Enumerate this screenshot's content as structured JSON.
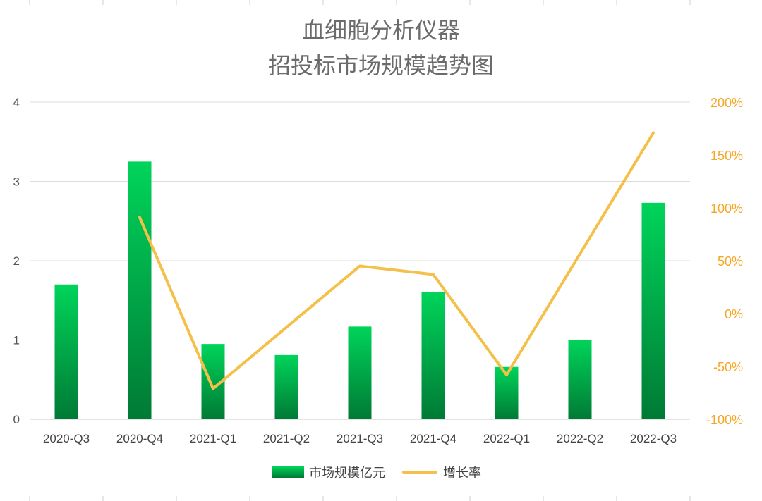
{
  "chart_data": {
    "type": "bar",
    "title": [
      "血细胞分析仪器",
      "招投标市场规模趋势图"
    ],
    "categories": [
      "2020-Q3",
      "2020-Q4",
      "2021-Q1",
      "2021-Q2",
      "2021-Q3",
      "2021-Q4",
      "2022-Q1",
      "2022-Q2",
      "2022-Q3"
    ],
    "series": [
      {
        "name": "市场规模亿元",
        "type": "bar",
        "axis": "left",
        "color": "#00c853",
        "values": [
          1.7,
          3.25,
          0.95,
          0.81,
          1.17,
          1.6,
          0.66,
          1.0,
          2.73
        ]
      },
      {
        "name": "增长率",
        "type": "line",
        "axis": "right",
        "color": "#f5c04a",
        "values": [
          null,
          91,
          -71,
          null,
          45,
          37,
          -58,
          null,
          171
        ]
      }
    ],
    "y_left": {
      "ylim": [
        0,
        4
      ],
      "ticks": [
        "0",
        "1",
        "2",
        "3",
        "4"
      ]
    },
    "y_right": {
      "ylim": [
        -100,
        200
      ],
      "ticks": [
        "-100%",
        "-50%",
        "0%",
        "50%",
        "100%",
        "150%",
        "200%"
      ]
    },
    "grid": true,
    "legend_position": "bottom"
  }
}
